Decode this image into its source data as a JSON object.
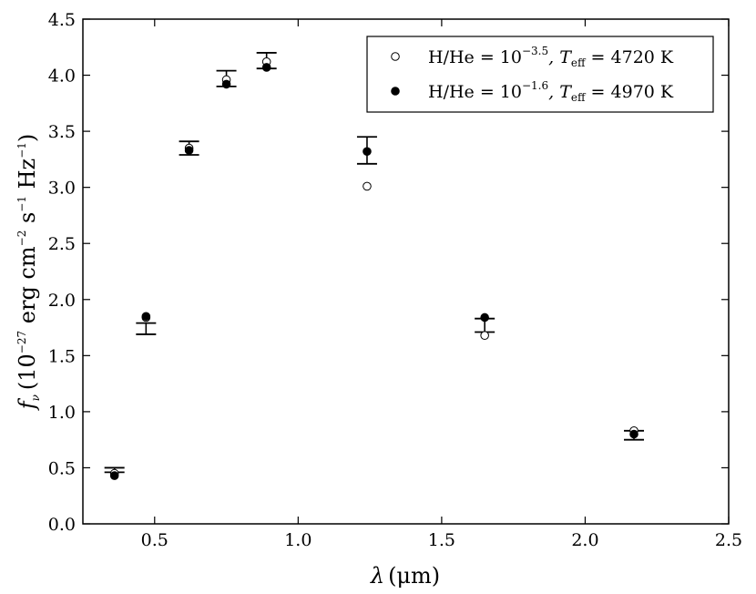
{
  "chart_data": {
    "type": "scatter",
    "xlabel": "λ (μm)",
    "ylabel": "fν (10⁻²⁷ erg cm⁻² s⁻¹ Hz⁻¹)",
    "xlim": [
      0.25,
      2.5
    ],
    "ylim": [
      0.0,
      4.5
    ],
    "xticks": [
      "0.5",
      "1.0",
      "1.5",
      "2.0",
      "2.5"
    ],
    "yticks": [
      "0.0",
      "0.5",
      "1.0",
      "1.5",
      "2.0",
      "2.5",
      "3.0",
      "3.5",
      "4.0",
      "4.5"
    ],
    "grid": false,
    "legend_position": "top-right",
    "observations": {
      "x": [
        0.36,
        0.47,
        0.62,
        0.75,
        0.89,
        1.24,
        1.65,
        2.17
      ],
      "y": [
        0.48,
        1.74,
        3.35,
        3.97,
        4.13,
        3.33,
        1.77,
        0.79
      ],
      "yerr": [
        0.02,
        0.05,
        0.06,
        0.07,
        0.07,
        0.12,
        0.06,
        0.04
      ]
    },
    "series": [
      {
        "name": "H/He = 10^-3.5, T_eff = 4720 K",
        "marker": "open-circle",
        "x": [
          0.36,
          0.47,
          0.62,
          0.75,
          0.89,
          1.24,
          1.65,
          2.17
        ],
        "y": [
          0.45,
          1.84,
          3.35,
          3.96,
          4.12,
          3.01,
          1.68,
          0.83
        ]
      },
      {
        "name": "H/He = 10^-1.6, T_eff = 4970 K",
        "marker": "filled-circle",
        "x": [
          0.36,
          0.47,
          0.62,
          0.75,
          0.89,
          1.24,
          1.65,
          2.17
        ],
        "y": [
          0.43,
          1.85,
          3.33,
          3.92,
          4.07,
          3.32,
          1.84,
          0.8
        ]
      }
    ],
    "legend": {
      "entries": [
        {
          "prefix": "H/He = 10",
          "exp": "−3.5",
          "mid": ", T",
          "sub": "eff",
          "suffix": " = 4720 K"
        },
        {
          "prefix": "H/He = 10",
          "exp": "−1.6",
          "mid": ", T",
          "sub": "eff",
          "suffix": " = 4970 K"
        }
      ]
    },
    "axis_text": {
      "x_lambda": "λ",
      "x_unit": "(μm)",
      "y_f": "f",
      "y_nu": "ν",
      "y_open": "(10",
      "y_exp1": "−27",
      "y_erg": " erg cm",
      "y_exp2": "−2",
      "y_s": " s",
      "y_exp3": "−1",
      "y_hz": " Hz",
      "y_exp4": "−1",
      "y_close": ")"
    }
  }
}
